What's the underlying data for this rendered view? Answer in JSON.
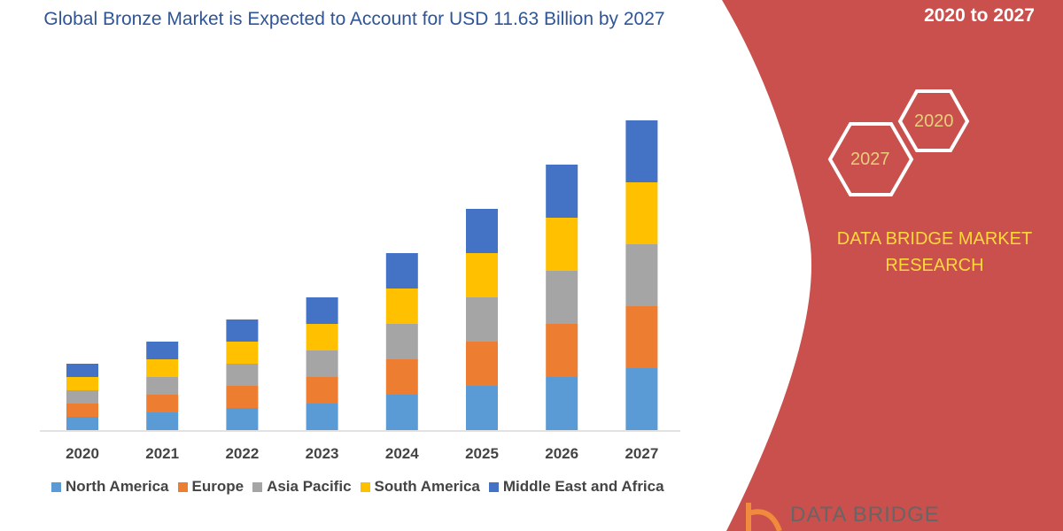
{
  "header": {
    "title": "Global Bronze Market is Expected to Account for USD 11.63 Billion by 2027",
    "period": "2020 to 2027"
  },
  "side_panel": {
    "hex_labels": [
      "2020",
      "2027"
    ],
    "brand": "DATA BRIDGE MARKET RESEARCH",
    "logo_text": "DATA BRIDGE",
    "panel_color": "#c9504c"
  },
  "chart_data": {
    "type": "bar",
    "stacked": true,
    "title": "Global Bronze Market is Expected to Account for USD 11.63 Billion by 2027",
    "xlabel": "",
    "ylabel": "",
    "grid": false,
    "legend_position": "bottom",
    "categories": [
      "2020",
      "2021",
      "2022",
      "2023",
      "2024",
      "2025",
      "2026",
      "2027"
    ],
    "series": [
      {
        "name": "North America",
        "color": "#5b9bd5",
        "values": [
          1.5,
          2,
          2.5,
          3,
          4,
          5,
          6,
          7
        ]
      },
      {
        "name": "Europe",
        "color": "#ed7d31",
        "values": [
          1.5,
          2,
          2.5,
          3,
          4,
          5,
          6,
          7
        ]
      },
      {
        "name": "Asia Pacific",
        "color": "#a5a5a5",
        "values": [
          1.5,
          2,
          2.5,
          3,
          4,
          5,
          6,
          7
        ]
      },
      {
        "name": "South America",
        "color": "#ffc000",
        "values": [
          1.5,
          2,
          2.5,
          3,
          4,
          5,
          6,
          7
        ]
      },
      {
        "name": "Middle East and Africa",
        "color": "#4472c4",
        "values": [
          1.5,
          2,
          2.5,
          3,
          4,
          5,
          6,
          7
        ]
      }
    ]
  }
}
